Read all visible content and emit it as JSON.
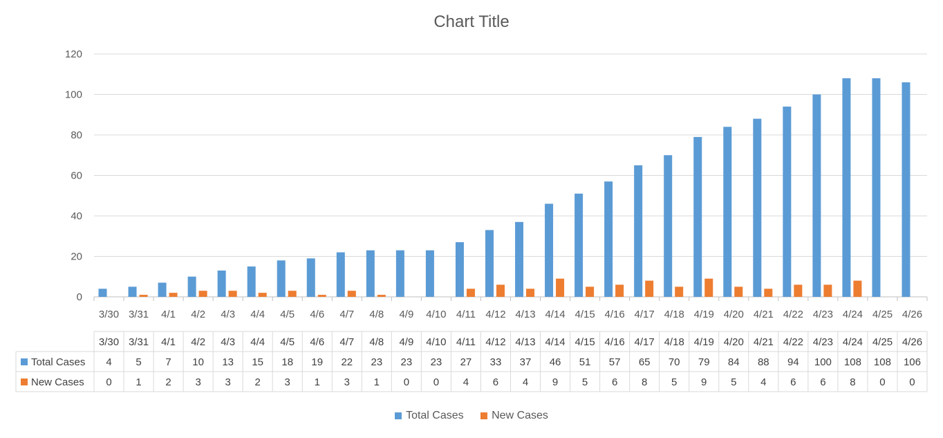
{
  "chart_data": {
    "type": "bar",
    "title": "Chart Title",
    "categories": [
      "3/30",
      "3/31",
      "4/1",
      "4/2",
      "4/3",
      "4/4",
      "4/5",
      "4/6",
      "4/7",
      "4/8",
      "4/9",
      "4/10",
      "4/11",
      "4/12",
      "4/13",
      "4/14",
      "4/15",
      "4/16",
      "4/17",
      "4/18",
      "4/19",
      "4/20",
      "4/21",
      "4/22",
      "4/23",
      "4/24",
      "4/25",
      "4/26"
    ],
    "series": [
      {
        "name": "Total Cases",
        "color": "#5B9BD5",
        "values": [
          4,
          5,
          7,
          10,
          13,
          15,
          18,
          19,
          22,
          23,
          23,
          23,
          27,
          33,
          37,
          46,
          51,
          57,
          65,
          70,
          79,
          84,
          88,
          94,
          100,
          108,
          108,
          106
        ]
      },
      {
        "name": "New Cases",
        "color": "#ED7D31",
        "values": [
          0,
          1,
          2,
          3,
          3,
          2,
          3,
          1,
          3,
          1,
          0,
          0,
          4,
          6,
          4,
          9,
          5,
          6,
          8,
          5,
          9,
          5,
          4,
          6,
          6,
          8,
          0,
          0
        ]
      }
    ],
    "ylim": [
      0,
      120
    ],
    "yticks": [
      0,
      20,
      40,
      60,
      80,
      100,
      120
    ],
    "grid": true,
    "data_table": true,
    "legend_position": "bottom"
  }
}
